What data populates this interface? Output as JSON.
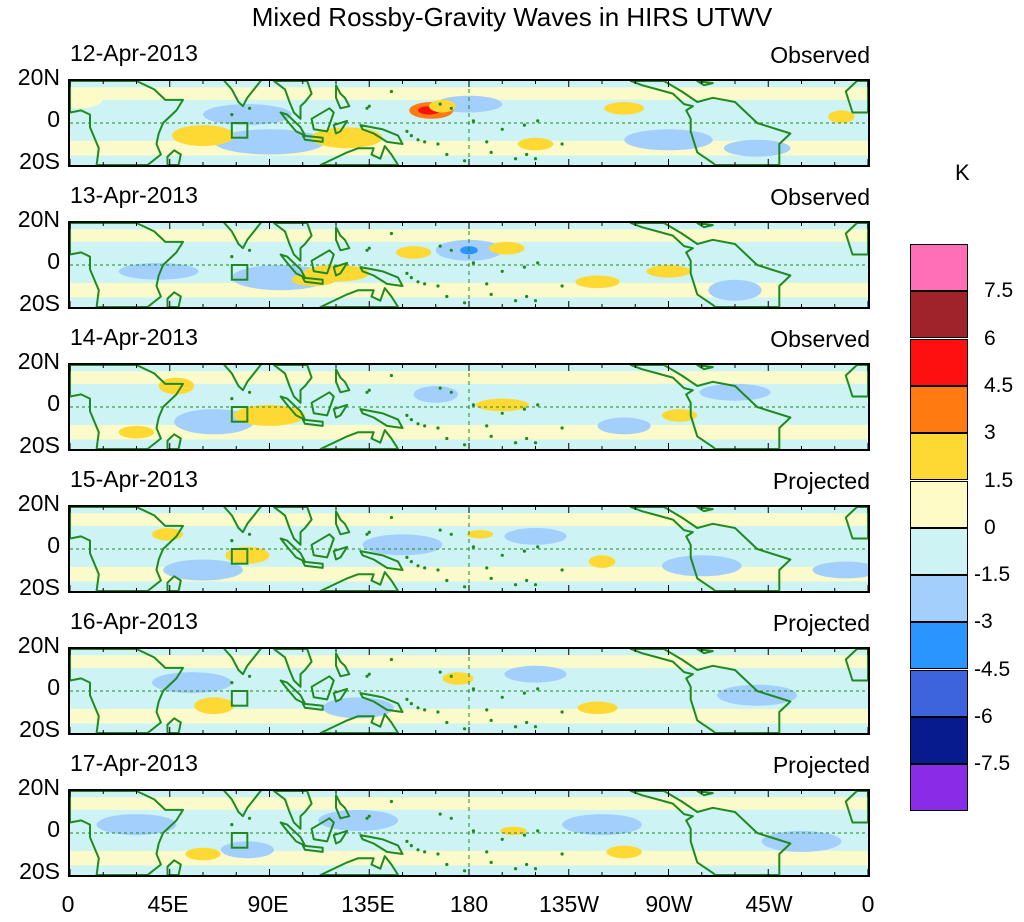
{
  "title": "Mixed Rossby-Gravity Waves in HIRS UTWV",
  "lat_labels": [
    "20N",
    "0",
    "20S"
  ],
  "lon_labels": [
    "0",
    "45E",
    "90E",
    "135E",
    "180",
    "135W",
    "90W",
    "45W",
    "0"
  ],
  "panels": [
    {
      "date": "12-Apr-2013",
      "status": "Observed"
    },
    {
      "date": "13-Apr-2013",
      "status": "Observed"
    },
    {
      "date": "14-Apr-2013",
      "status": "Observed"
    },
    {
      "date": "15-Apr-2013",
      "status": "Projected"
    },
    {
      "date": "16-Apr-2013",
      "status": "Projected"
    },
    {
      "date": "17-Apr-2013",
      "status": "Projected"
    }
  ],
  "colorbar": {
    "units": "K",
    "labels": [
      "7.5",
      "6",
      "4.5",
      "3",
      "1.5",
      "0",
      "-1.5",
      "-3",
      "-4.5",
      "-6",
      "-7.5"
    ],
    "colors": [
      "#ff6fb7",
      "#a0232b",
      "#ff1010",
      "#ff7a10",
      "#ffd933",
      "#fffbc6",
      "#cdf3f5",
      "#a3cffd",
      "#2b95ff",
      "#3d64dd",
      "#071b8f",
      "#8a2be8"
    ]
  },
  "colors": {
    "coast": "#1f8a1f",
    "equator_line": "#1f8a1f",
    "positive_light": "#fffbc6",
    "negative_light": "#cdf3f5"
  }
}
